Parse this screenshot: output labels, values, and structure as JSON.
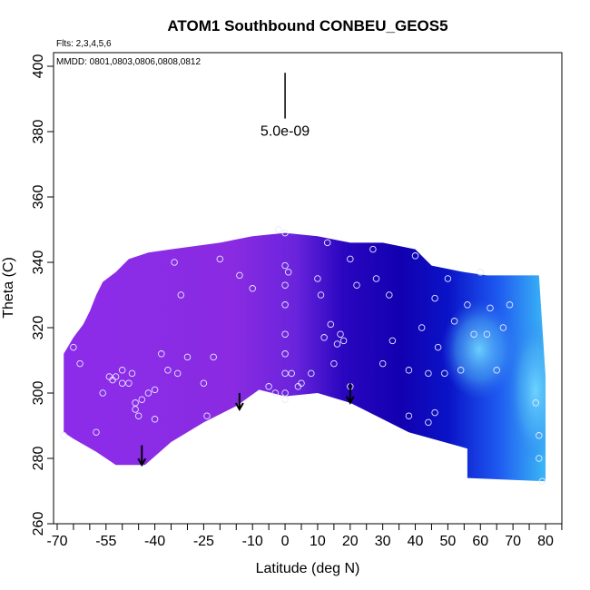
{
  "chart_data": {
    "type": "heatmap",
    "title": "ATOM1 Southbound CONBEU_GEOS5",
    "flights_note": "Flts: 2,3,4,5,6",
    "dates_note": "MMDD: 0801,0803,0806,0808,0812",
    "xlabel": "Latitude (deg N)",
    "ylabel": "Theta (C)",
    "xlim": [
      -70,
      85
    ],
    "ylim": [
      260,
      402
    ],
    "x_ticks": [
      -70,
      -55,
      -40,
      -25,
      -10,
      0,
      10,
      20,
      30,
      40,
      50,
      60,
      70,
      80
    ],
    "x_minor_ticks": [
      -65,
      -60,
      -50,
      -45,
      -35,
      -30,
      -20,
      -15,
      -5,
      5,
      15,
      25,
      35,
      45,
      55,
      65,
      75,
      85
    ],
    "y_ticks": [
      260,
      280,
      300,
      320,
      340,
      360,
      380,
      400
    ],
    "scale_bar": {
      "label": "5.0e-09",
      "x": 0,
      "y_bottom": 384,
      "y_top": 398
    },
    "colors": {
      "purple": "#8a2be2",
      "dark_blue": "#1a00b8",
      "blue": "#1e3cf0",
      "light_blue": "#3ab0f0"
    },
    "field_upper_boundary": [
      [
        -68,
        312
      ],
      [
        -65,
        317
      ],
      [
        -62,
        321
      ],
      [
        -60,
        325
      ],
      [
        -58,
        330
      ],
      [
        -56,
        334
      ],
      [
        -52,
        337
      ],
      [
        -48,
        341
      ],
      [
        -42,
        343
      ],
      [
        -35,
        344
      ],
      [
        -20,
        346
      ],
      [
        -10,
        348
      ],
      [
        0,
        349
      ],
      [
        10,
        348
      ],
      [
        20,
        346
      ],
      [
        30,
        346
      ],
      [
        40,
        344
      ],
      [
        45,
        339
      ],
      [
        55,
        337
      ],
      [
        62,
        336
      ],
      [
        70,
        336
      ],
      [
        78,
        336
      ],
      [
        80,
        305
      ]
    ],
    "field_lower_boundary": [
      [
        80,
        273
      ],
      [
        56,
        274
      ],
      [
        56,
        283
      ],
      [
        38,
        288
      ],
      [
        20,
        297
      ],
      [
        10,
        300
      ],
      [
        0,
        299
      ],
      [
        -8,
        301
      ],
      [
        -15,
        296
      ],
      [
        -25,
        291
      ],
      [
        -35,
        285
      ],
      [
        -43,
        278
      ],
      [
        -52,
        278
      ],
      [
        -58,
        282
      ],
      [
        -65,
        286
      ],
      [
        -68,
        288
      ]
    ],
    "points": [
      [
        -65,
        314
      ],
      [
        -63,
        309
      ],
      [
        -68,
        287
      ],
      [
        -58,
        288
      ],
      [
        -56,
        300
      ],
      [
        -54,
        305
      ],
      [
        -53,
        304
      ],
      [
        -52,
        305
      ],
      [
        -50,
        303
      ],
      [
        -50,
        307
      ],
      [
        -48,
        303
      ],
      [
        -47,
        306
      ],
      [
        -46,
        297
      ],
      [
        -46,
        295
      ],
      [
        -45,
        293
      ],
      [
        -44,
        298
      ],
      [
        -42,
        300
      ],
      [
        -40,
        301
      ],
      [
        -40,
        292
      ],
      [
        -38,
        312
      ],
      [
        -36,
        307
      ],
      [
        -34,
        340
      ],
      [
        -33,
        306
      ],
      [
        -32,
        330
      ],
      [
        -30,
        311
      ],
      [
        -25,
        303
      ],
      [
        -24,
        293
      ],
      [
        -22,
        311
      ],
      [
        -20,
        341
      ],
      [
        -14,
        336
      ],
      [
        -10,
        332
      ],
      [
        -5,
        302
      ],
      [
        -3,
        300
      ],
      [
        -2,
        350
      ],
      [
        0,
        349
      ],
      [
        0,
        339
      ],
      [
        1,
        337
      ],
      [
        0,
        333
      ],
      [
        0,
        327
      ],
      [
        0,
        318
      ],
      [
        0,
        312
      ],
      [
        0,
        306
      ],
      [
        0,
        300
      ],
      [
        0,
        298
      ],
      [
        2,
        306
      ],
      [
        4,
        302
      ],
      [
        5,
        303
      ],
      [
        8,
        306
      ],
      [
        10,
        335
      ],
      [
        11,
        330
      ],
      [
        12,
        317
      ],
      [
        13,
        346
      ],
      [
        14,
        321
      ],
      [
        15,
        309
      ],
      [
        16,
        315
      ],
      [
        17,
        318
      ],
      [
        18,
        316
      ],
      [
        20,
        341
      ],
      [
        20,
        302
      ],
      [
        22,
        333
      ],
      [
        27,
        344
      ],
      [
        28,
        335
      ],
      [
        30,
        309
      ],
      [
        32,
        330
      ],
      [
        33,
        316
      ],
      [
        38,
        293
      ],
      [
        38,
        307
      ],
      [
        40,
        342
      ],
      [
        42,
        320
      ],
      [
        44,
        291
      ],
      [
        44,
        306
      ],
      [
        46,
        294
      ],
      [
        46,
        329
      ],
      [
        47,
        314
      ],
      [
        49,
        306
      ],
      [
        50,
        335
      ],
      [
        52,
        322
      ],
      [
        54,
        307
      ],
      [
        56,
        327
      ],
      [
        58,
        318
      ],
      [
        60,
        337
      ],
      [
        62,
        318
      ],
      [
        63,
        326
      ],
      [
        65,
        307
      ],
      [
        67,
        320
      ],
      [
        69,
        327
      ],
      [
        77,
        297
      ],
      [
        78,
        287
      ],
      [
        78,
        280
      ],
      [
        79,
        273
      ]
    ],
    "arrows": [
      {
        "x": -44,
        "y_top": 284,
        "y_bottom": 278
      },
      {
        "x": -14,
        "y_top": 300,
        "y_bottom": 295
      },
      {
        "x": 20,
        "y_top": 303,
        "y_bottom": 297
      }
    ]
  }
}
